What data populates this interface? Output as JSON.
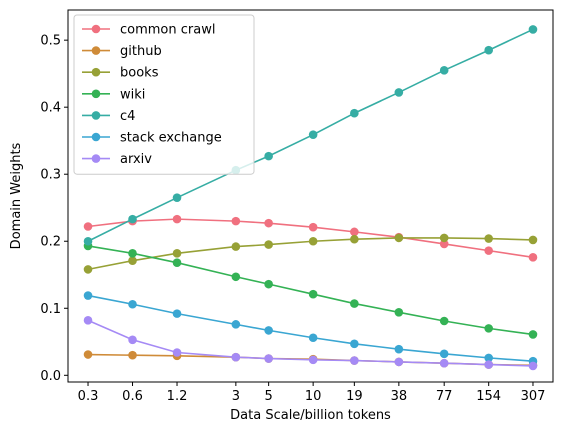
{
  "chart_data": {
    "type": "line",
    "xlabel": "Data Scale/billion tokens",
    "ylabel": "Domain Weights",
    "categories": [
      "0.3",
      "0.6",
      "1.2",
      "3",
      "5",
      "10",
      "19",
      "38",
      "77",
      "154",
      "307"
    ],
    "x": [
      0.3,
      0.6,
      1.2,
      3,
      5,
      10,
      19,
      38,
      77,
      154,
      307
    ],
    "x_scale": "log",
    "ylim": [
      -0.01,
      0.545
    ],
    "yticks": [
      "0.0",
      "0.1",
      "0.2",
      "0.3",
      "0.4",
      "0.5"
    ],
    "grid": false,
    "legend_position": "top-left",
    "series": [
      {
        "name": "common crawl",
        "color": "#f0707f",
        "values": [
          0.222,
          0.23,
          0.233,
          0.23,
          0.227,
          0.221,
          0.214,
          0.206,
          0.196,
          0.186,
          0.176
        ]
      },
      {
        "name": "github",
        "color": "#cf8b38",
        "values": [
          0.031,
          0.03,
          0.029,
          0.027,
          0.025,
          0.024,
          0.022,
          0.02,
          0.018,
          0.016,
          0.015
        ]
      },
      {
        "name": "books",
        "color": "#97a136",
        "values": [
          0.158,
          0.171,
          0.182,
          0.192,
          0.195,
          0.2,
          0.203,
          0.205,
          0.205,
          0.204,
          0.202
        ]
      },
      {
        "name": "wiki",
        "color": "#34b255",
        "values": [
          0.193,
          0.182,
          0.168,
          0.147,
          0.136,
          0.121,
          0.107,
          0.094,
          0.081,
          0.07,
          0.061
        ]
      },
      {
        "name": "c4",
        "color": "#36ada4",
        "values": [
          0.2,
          0.233,
          0.265,
          0.306,
          0.327,
          0.359,
          0.391,
          0.422,
          0.455,
          0.485,
          0.516
        ]
      },
      {
        "name": "stack exchange",
        "color": "#3aa6d2",
        "values": [
          0.119,
          0.106,
          0.092,
          0.076,
          0.067,
          0.056,
          0.047,
          0.039,
          0.032,
          0.026,
          0.021
        ]
      },
      {
        "name": "arxiv",
        "color": "#a58af5",
        "values": [
          0.082,
          0.053,
          0.034,
          0.027,
          0.025,
          0.023,
          0.022,
          0.02,
          0.018,
          0.016,
          0.014
        ]
      }
    ]
  }
}
